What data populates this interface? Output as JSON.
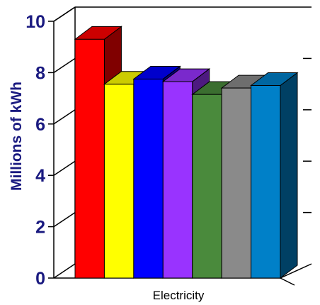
{
  "chart_data": {
    "type": "bar",
    "style": "3d-column",
    "categories": [
      "Electricity"
    ],
    "series": [
      {
        "values": [
          9.3
        ],
        "color": "#ff0000"
      },
      {
        "values": [
          7.55
        ],
        "color": "#ffff00"
      },
      {
        "values": [
          7.75
        ],
        "color": "#0000ff"
      },
      {
        "values": [
          7.65
        ],
        "color": "#9933ff"
      },
      {
        "values": [
          7.15
        ],
        "color": "#4a8a3c"
      },
      {
        "values": [
          7.4
        ],
        "color": "#8a8a8a"
      },
      {
        "values": [
          7.5
        ],
        "color": "#0080c8"
      }
    ],
    "ylabel": "Millions of  kWh",
    "ylim": [
      0,
      10
    ],
    "yticks": [
      "0",
      "2",
      "4",
      "6",
      "8",
      "10"
    ],
    "grid": false,
    "legend": "none"
  }
}
